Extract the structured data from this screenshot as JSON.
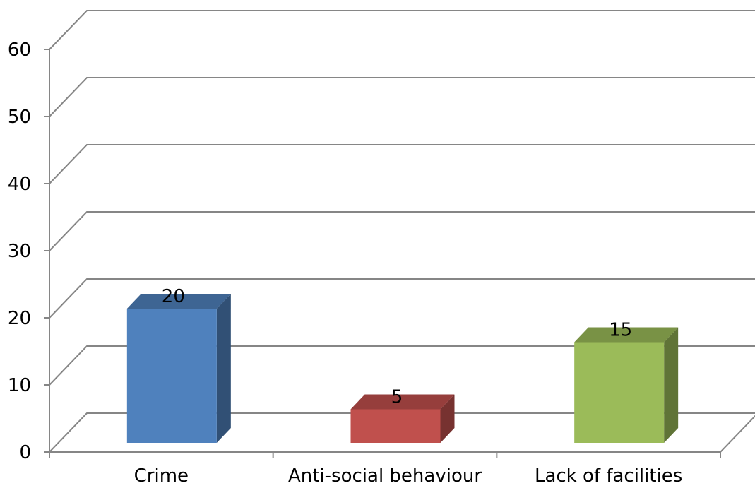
{
  "chart_data": {
    "type": "bar",
    "style": "3d-column",
    "categories": [
      "Crime",
      "Anti-social behaviour",
      "Lack of facilities"
    ],
    "values": [
      20,
      5,
      15
    ],
    "value_labels": [
      "20",
      "5",
      "15"
    ],
    "colors": [
      "#4F81BD",
      "#C0504D",
      "#9BBB59"
    ],
    "ylim": [
      0,
      60
    ],
    "yticks": [
      0,
      10,
      20,
      30,
      40,
      50,
      60
    ],
    "ytick_labels": [
      "0",
      "10",
      "20",
      "30",
      "40",
      "50",
      "60"
    ],
    "grid": true,
    "legend": "none",
    "title": "",
    "xlabel": "",
    "ylabel": ""
  }
}
